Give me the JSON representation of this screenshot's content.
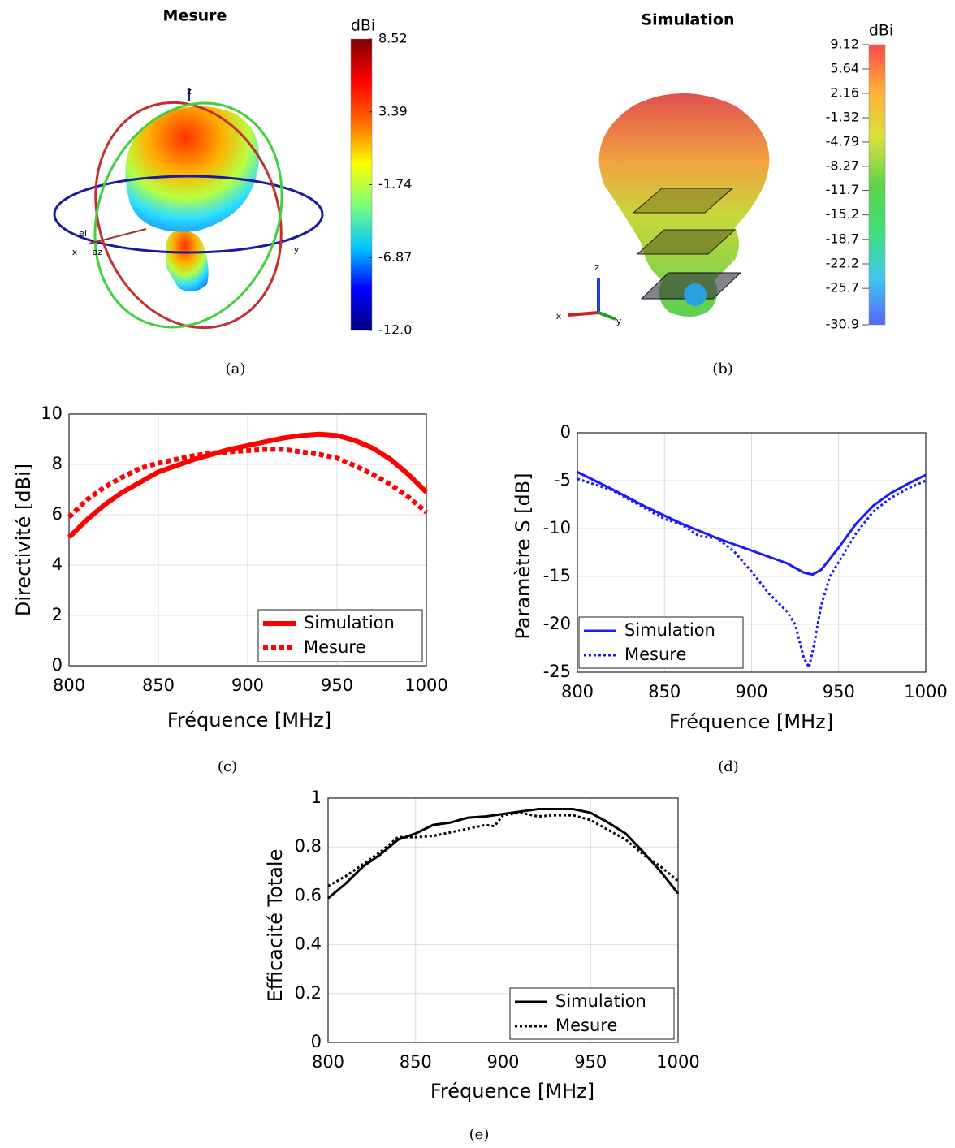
{
  "chart_data": [
    {
      "type": "colorbar",
      "title": "Mesure",
      "colorbar_label": "dBi",
      "caption": "(a)",
      "ylim": [
        -12.0,
        8.52
      ],
      "yticks": [
        8.52,
        3.39,
        -1.74,
        -6.87,
        {
          "value": -12.0,
          "label": "-12.0"
        }
      ],
      "colormap": [
        "#00007f",
        "#0000ff",
        "#00c8ff",
        "#7dff7a",
        "#ffff00",
        "#ff6a00",
        "#ff0000",
        "#7f0000"
      ],
      "axis_labels": [
        "z",
        "x",
        "y",
        "el",
        "az"
      ]
    },
    {
      "type": "colorbar",
      "title": "Simulation",
      "colorbar_label": "dBi",
      "caption": "(b)",
      "ylim": [
        -30.9,
        9.12
      ],
      "yticks": [
        9.12,
        5.64,
        2.16,
        -1.32,
        -4.79,
        -8.27,
        -11.7,
        -15.2,
        -18.7,
        -22.2,
        -25.7,
        -30.9
      ],
      "colormap": [
        "#5566ff",
        "#3fc8f0",
        "#3ee07a",
        "#5fd24a",
        "#d8e23a",
        "#ffb03a",
        "#ff4a4a"
      ],
      "axis_labels": [
        "z",
        "x",
        "y"
      ]
    },
    {
      "type": "line",
      "caption": "(c)",
      "xlabel": "Fréquence [MHz]",
      "ylabel": "Directivité [dBi]",
      "xlim": [
        800,
        1000
      ],
      "xticks": [
        800,
        850,
        900,
        950,
        1000
      ],
      "ylim": [
        0,
        10
      ],
      "yticks": [
        0,
        2,
        4,
        6,
        8,
        10
      ],
      "grid": true,
      "legend": "lower right",
      "series": [
        {
          "name": "Simulation",
          "color": "#ff0000",
          "style": "solid",
          "x": [
            800,
            810,
            820,
            830,
            840,
            850,
            860,
            870,
            880,
            890,
            900,
            910,
            920,
            930,
            940,
            950,
            960,
            970,
            980,
            990,
            1000
          ],
          "values": [
            5.1,
            5.8,
            6.4,
            6.9,
            7.3,
            7.7,
            7.95,
            8.2,
            8.4,
            8.6,
            8.75,
            8.9,
            9.05,
            9.15,
            9.2,
            9.15,
            8.95,
            8.65,
            8.2,
            7.6,
            6.9
          ]
        },
        {
          "name": "Mesure",
          "color": "#ff0000",
          "style": "dotted",
          "x": [
            800,
            810,
            820,
            830,
            840,
            850,
            860,
            870,
            880,
            890,
            900,
            910,
            920,
            930,
            940,
            950,
            960,
            970,
            980,
            990,
            1000
          ],
          "values": [
            5.9,
            6.6,
            7.1,
            7.5,
            7.85,
            8.05,
            8.2,
            8.35,
            8.45,
            8.5,
            8.55,
            8.6,
            8.6,
            8.5,
            8.4,
            8.25,
            7.95,
            7.6,
            7.2,
            6.7,
            6.1
          ]
        }
      ]
    },
    {
      "type": "line",
      "caption": "(d)",
      "xlabel": "Fréquence [MHz]",
      "ylabel": "Paramètre S [dB]",
      "xlim": [
        800,
        1000
      ],
      "xticks": [
        800,
        850,
        900,
        950,
        1000
      ],
      "ylim": [
        -25,
        0
      ],
      "yticks": [
        -25,
        -20,
        -15,
        -10,
        -5,
        0
      ],
      "grid": true,
      "legend": "lower left",
      "series": [
        {
          "name": "Simulation",
          "color": "#1a1aff",
          "style": "solid",
          "x": [
            800,
            820,
            840,
            860,
            880,
            900,
            920,
            930,
            935,
            940,
            950,
            960,
            970,
            980,
            990,
            1000
          ],
          "values": [
            -4.1,
            -5.9,
            -7.8,
            -9.5,
            -11.0,
            -12.3,
            -13.6,
            -14.6,
            -14.8,
            -14.3,
            -12.0,
            -9.5,
            -7.6,
            -6.3,
            -5.3,
            -4.4
          ]
        },
        {
          "name": "Mesure",
          "color": "#1a1aff",
          "style": "dotted",
          "x": [
            800,
            820,
            840,
            850,
            860,
            870,
            880,
            890,
            900,
            910,
            920,
            925,
            930,
            933,
            936,
            940,
            945,
            950,
            960,
            970,
            980,
            990,
            1000
          ],
          "values": [
            -4.8,
            -6.0,
            -8.0,
            -9.0,
            -9.6,
            -10.8,
            -11.0,
            -12.4,
            -14.5,
            -16.8,
            -18.6,
            -20,
            -23.5,
            -24.5,
            -22,
            -18,
            -15.0,
            -13.5,
            -10.5,
            -8.2,
            -6.8,
            -5.8,
            -5.0
          ]
        }
      ]
    },
    {
      "type": "line",
      "caption": "(e)",
      "xlabel": "Fréquence [MHz]",
      "ylabel": "Efficacité Totale",
      "xlim": [
        800,
        1000
      ],
      "xticks": [
        800,
        850,
        900,
        950,
        1000
      ],
      "ylim": [
        0,
        1
      ],
      "yticks": [
        0,
        0.2,
        0.4,
        0.6,
        0.8,
        1
      ],
      "grid": true,
      "legend": "lower right",
      "series": [
        {
          "name": "Simulation",
          "color": "#000000",
          "style": "solid",
          "x": [
            800,
            810,
            820,
            830,
            840,
            850,
            860,
            870,
            880,
            890,
            900,
            910,
            920,
            930,
            940,
            950,
            960,
            970,
            980,
            990,
            1000
          ],
          "values": [
            0.59,
            0.65,
            0.72,
            0.77,
            0.83,
            0.855,
            0.89,
            0.9,
            0.92,
            0.925,
            0.935,
            0.945,
            0.955,
            0.955,
            0.955,
            0.94,
            0.9,
            0.855,
            0.78,
            0.7,
            0.61
          ]
        },
        {
          "name": "Mesure",
          "color": "#000000",
          "style": "dotted",
          "x": [
            800,
            810,
            820,
            830,
            840,
            850,
            860,
            870,
            880,
            890,
            895,
            900,
            910,
            920,
            930,
            940,
            950,
            960,
            970,
            980,
            990,
            1000
          ],
          "values": [
            0.64,
            0.68,
            0.73,
            0.78,
            0.84,
            0.84,
            0.845,
            0.86,
            0.875,
            0.89,
            0.885,
            0.93,
            0.94,
            0.925,
            0.93,
            0.93,
            0.91,
            0.87,
            0.83,
            0.77,
            0.72,
            0.66
          ]
        }
      ]
    }
  ]
}
